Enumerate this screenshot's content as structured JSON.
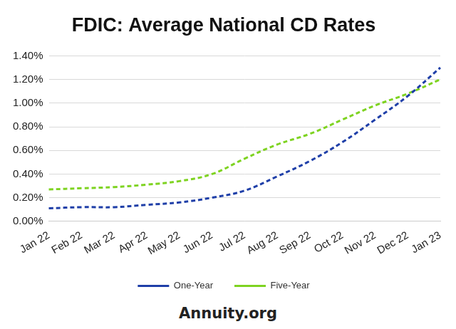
{
  "chart_data": {
    "type": "line",
    "title": "FDIC: Average National CD Rates",
    "categories": [
      "Jan 22",
      "Feb 22",
      "Mar 22",
      "Apr 22",
      "May 22",
      "Jun 22",
      "Jul 22",
      "Aug 22",
      "Sep 22",
      "Oct 22",
      "Nov 22",
      "Dec 22",
      "Jan 23"
    ],
    "series": [
      {
        "name": "One-Year",
        "color": "#1f3fa8",
        "line_style": "dashed",
        "values": [
          0.11,
          0.12,
          0.12,
          0.14,
          0.16,
          0.2,
          0.26,
          0.38,
          0.51,
          0.67,
          0.86,
          1.06,
          1.3
        ]
      },
      {
        "name": "Five-Year",
        "color": "#7ed321",
        "line_style": "dashed",
        "values": [
          0.27,
          0.28,
          0.29,
          0.31,
          0.34,
          0.4,
          0.53,
          0.65,
          0.74,
          0.86,
          0.98,
          1.08,
          1.2
        ]
      }
    ],
    "ylim": [
      0,
      1.4
    ],
    "yticks": [
      {
        "value": 0,
        "label": "0.00%"
      },
      {
        "value": 0.2,
        "label": "0.20%"
      },
      {
        "value": 0.4,
        "label": "0.40%"
      },
      {
        "value": 0.6,
        "label": "0.60%"
      },
      {
        "value": 0.8,
        "label": "0.80%"
      },
      {
        "value": 1.0,
        "label": "1.00%"
      },
      {
        "value": 1.2,
        "label": "1.20%"
      },
      {
        "value": 1.4,
        "label": "1.40%"
      }
    ],
    "grid": true,
    "legend": "bottom",
    "annotations": [
      "Annuity.org"
    ]
  }
}
